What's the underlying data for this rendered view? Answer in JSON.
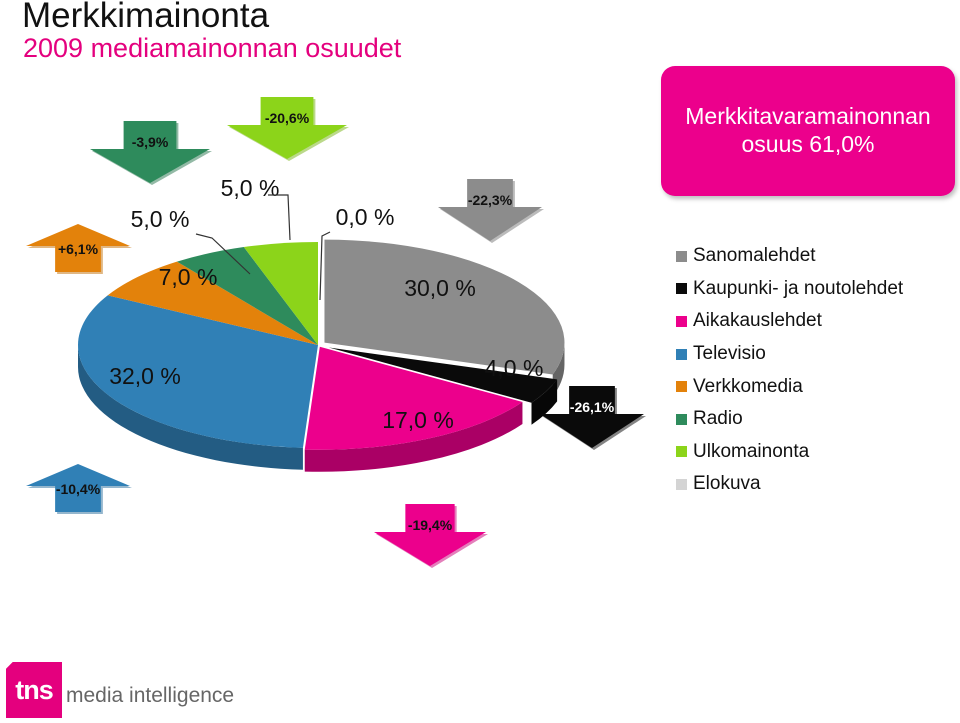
{
  "header": {
    "title": "Merkkimainonta",
    "subtitle": "2009 mediamainonnan osuudet"
  },
  "callout": {
    "line1": "Merkkitavaramainonnan",
    "line2": "osuus 61,0%",
    "color": "#ec008c"
  },
  "chart_data": {
    "type": "pie",
    "style": "3d-exploded",
    "slices": [
      {
        "name": "Sanomalehdet",
        "value": 30.0,
        "label": "30,0 %",
        "color": "#8c8c8c",
        "change": "-22,3%"
      },
      {
        "name": "Kaupunki- ja noutolehdet",
        "value": 4.0,
        "label": "4,0 %",
        "color": "#0a0a0a",
        "change": "-26,1%"
      },
      {
        "name": "Aikakauslehdet",
        "value": 17.0,
        "label": "17,0 %",
        "color": "#ec008c",
        "change": "-19,4%"
      },
      {
        "name": "Televisio",
        "value": 32.0,
        "label": "32,0 %",
        "color": "#3080b6",
        "change": "-10,4%"
      },
      {
        "name": "Verkkomedia",
        "value": 7.0,
        "label": "7,0 %",
        "color": "#e3820b",
        "change": "+6,1%"
      },
      {
        "name": "Radio",
        "value": 5.0,
        "label": "5,0 %",
        "color": "#2e8b5c",
        "change": "-3,9%"
      },
      {
        "name": "Ulkomainonta",
        "value": 5.0,
        "label": "5,0 %",
        "color": "#8cd41a",
        "change": "-20,6%"
      },
      {
        "name": "Elokuva",
        "value": 0.0,
        "label": "0,0 %",
        "color": "#d4d4d4",
        "change": ""
      }
    ],
    "legend_position": "right"
  },
  "logo": {
    "mark": "tns",
    "text": "media intelligence",
    "color": "#e4007e"
  }
}
